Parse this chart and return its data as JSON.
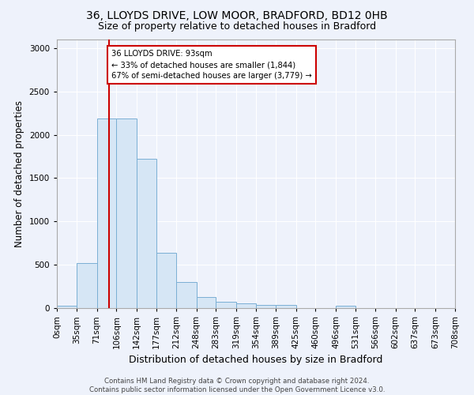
{
  "title1": "36, LLOYDS DRIVE, LOW MOOR, BRADFORD, BD12 0HB",
  "title2": "Size of property relative to detached houses in Bradford",
  "xlabel": "Distribution of detached houses by size in Bradford",
  "ylabel": "Number of detached properties",
  "bar_color": "#d6e6f5",
  "bar_edge_color": "#7aafd4",
  "background_color": "#eef2fb",
  "grid_color": "#ffffff",
  "property_sqm": 93,
  "annotation_text": "36 LLOYDS DRIVE: 93sqm\n← 33% of detached houses are smaller (1,844)\n67% of semi-detached houses are larger (3,779) →",
  "annotation_box_color": "#ffffff",
  "annotation_border_color": "#cc0000",
  "vline_color": "#cc0000",
  "bin_edges": [
    0,
    35,
    71,
    106,
    142,
    177,
    212,
    248,
    283,
    319,
    354,
    389,
    425,
    460,
    496,
    531,
    566,
    602,
    637,
    673,
    708
  ],
  "bin_labels": [
    "0sqm",
    "35sqm",
    "71sqm",
    "106sqm",
    "142sqm",
    "177sqm",
    "212sqm",
    "248sqm",
    "283sqm",
    "319sqm",
    "354sqm",
    "389sqm",
    "425sqm",
    "460sqm",
    "496sqm",
    "531sqm",
    "566sqm",
    "602sqm",
    "637sqm",
    "673sqm",
    "708sqm"
  ],
  "bar_heights": [
    30,
    520,
    2190,
    2190,
    1720,
    640,
    300,
    130,
    75,
    55,
    40,
    40,
    0,
    0,
    30,
    0,
    0,
    0,
    0,
    0
  ],
  "ylim": [
    0,
    3100
  ],
  "yticks": [
    0,
    500,
    1000,
    1500,
    2000,
    2500,
    3000
  ],
  "footer_text": "Contains HM Land Registry data © Crown copyright and database right 2024.\nContains public sector information licensed under the Open Government Licence v3.0.",
  "title_fontsize": 10,
  "subtitle_fontsize": 9,
  "tick_fontsize": 7.5,
  "ylabel_fontsize": 8.5,
  "xlabel_fontsize": 9
}
